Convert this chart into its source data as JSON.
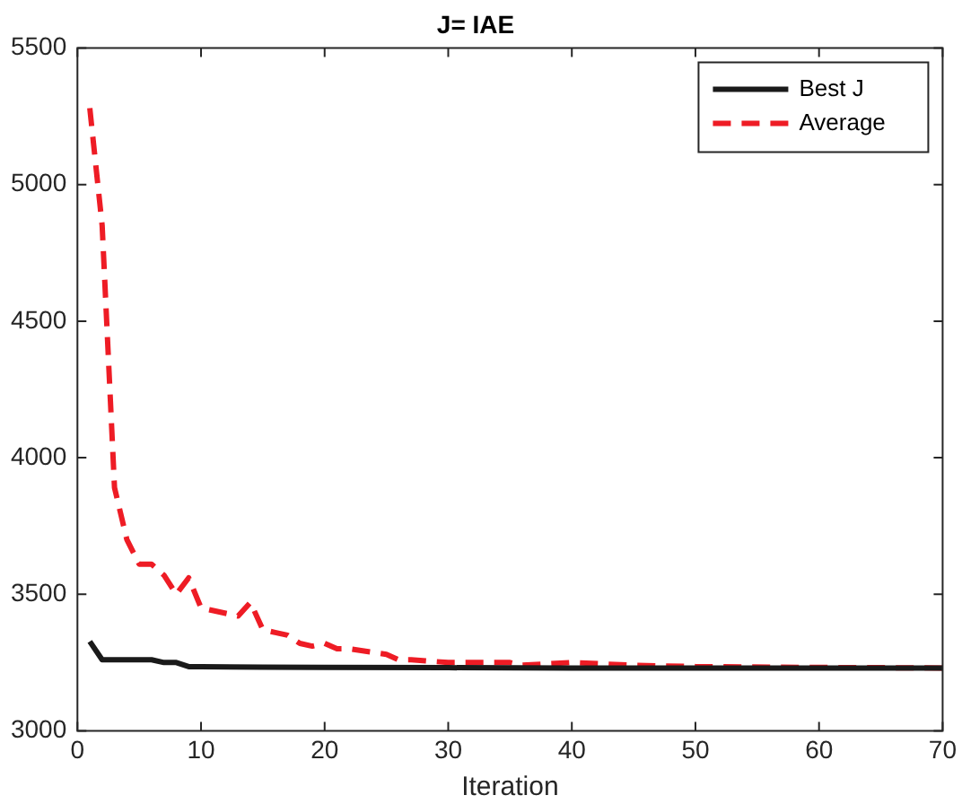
{
  "chart_data": {
    "type": "line",
    "title": "J= IAE",
    "xlabel": "Iteration",
    "xlim": [
      0,
      70
    ],
    "xticks": [
      0,
      10,
      20,
      30,
      40,
      50,
      60,
      70
    ],
    "ylim": [
      3000,
      5500
    ],
    "yticks": [
      3000,
      3500,
      4000,
      4500,
      5000,
      5500
    ],
    "grid": false,
    "legend": "top right",
    "marker": "none",
    "series": [
      {
        "name": "Best J",
        "color": "#1a1a1a",
        "line_style": "solid",
        "x": [
          1,
          2,
          3,
          4,
          5,
          6,
          7,
          8,
          9,
          10,
          15,
          20,
          30,
          40,
          50,
          60,
          70
        ],
        "values": [
          3327,
          3260,
          3260,
          3260,
          3260,
          3260,
          3250,
          3250,
          3235,
          3235,
          3233,
          3232,
          3231,
          3230,
          3230,
          3230,
          3230
        ]
      },
      {
        "name": "Average",
        "color": "#ee1c25",
        "line_style": "dashed",
        "x": [
          1,
          2,
          3,
          4,
          5,
          6,
          7,
          8,
          9,
          10,
          11,
          12,
          13,
          14,
          15,
          16,
          17,
          18,
          19,
          20,
          21,
          22,
          25,
          26,
          27,
          30,
          35,
          36,
          40,
          45,
          50,
          60,
          70
        ],
        "values": [
          5280,
          4850,
          3890,
          3700,
          3610,
          3610,
          3570,
          3500,
          3560,
          3450,
          3440,
          3430,
          3420,
          3470,
          3370,
          3360,
          3350,
          3320,
          3310,
          3320,
          3300,
          3300,
          3280,
          3260,
          3260,
          3250,
          3250,
          3240,
          3250,
          3240,
          3235,
          3232,
          3230
        ]
      }
    ]
  }
}
